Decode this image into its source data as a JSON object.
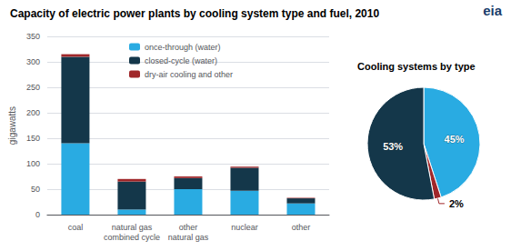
{
  "chart_data": [
    {
      "type": "bar",
      "title": "Capacity of electric power plants by cooling system type and fuel, 2010",
      "ylabel": "gigawatts",
      "categories": [
        "coal",
        "natural gas\ncombined cycle",
        "other\nnatural gas",
        "nuclear",
        "other"
      ],
      "series": [
        {
          "name": "once-through (water)",
          "color": "#29ABE2",
          "values": [
            140,
            10,
            50,
            47,
            22
          ]
        },
        {
          "name": "closed-cycle (water)",
          "color": "#14374A",
          "values": [
            170,
            55,
            22,
            45,
            10
          ]
        },
        {
          "name": "dry-air cooling and other",
          "color": "#A0272A",
          "values": [
            5,
            5,
            3,
            2,
            1
          ]
        }
      ],
      "stacked": true,
      "ylim": [
        0,
        350
      ],
      "yticks": [
        0,
        50,
        100,
        150,
        200,
        250,
        300,
        350
      ],
      "grid": true,
      "legend": "upper left",
      "annotations": [
        "eia"
      ]
    },
    {
      "type": "pie",
      "title": "Cooling systems by type",
      "values": [
        45,
        2,
        53
      ],
      "value_labels": [
        "45%",
        "2%",
        "53%"
      ],
      "colors": [
        "#29ABE2",
        "#A0272A",
        "#14374A"
      ],
      "data_labels": true
    }
  ]
}
